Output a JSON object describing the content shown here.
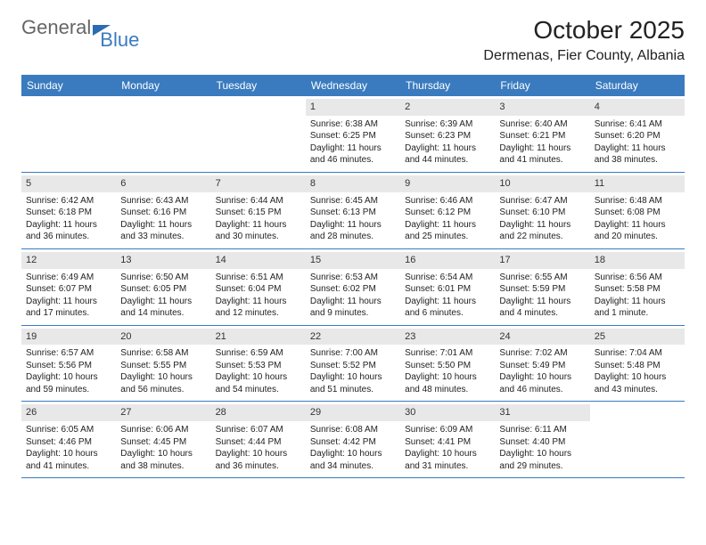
{
  "brand": {
    "part1": "General",
    "part2": "Blue"
  },
  "title": "October 2025",
  "location": "Dermenas, Fier County, Albania",
  "daynames": [
    "Sunday",
    "Monday",
    "Tuesday",
    "Wednesday",
    "Thursday",
    "Friday",
    "Saturday"
  ],
  "colors": {
    "header_bg": "#3a7bbf",
    "header_text": "#ffffff",
    "daynum_bg": "#e8e8e8",
    "divider": "#3a7bbf",
    "text": "#222222",
    "brand_gray": "#666666",
    "brand_blue": "#3a7bbf"
  },
  "typography": {
    "title_fontsize": 28,
    "location_fontsize": 16,
    "header_fontsize": 12,
    "cell_fontsize": 10
  },
  "weeks": [
    [
      {
        "num": "",
        "sunrise": "",
        "sunset": "",
        "daylight": ""
      },
      {
        "num": "",
        "sunrise": "",
        "sunset": "",
        "daylight": ""
      },
      {
        "num": "",
        "sunrise": "",
        "sunset": "",
        "daylight": ""
      },
      {
        "num": "1",
        "sunrise": "Sunrise: 6:38 AM",
        "sunset": "Sunset: 6:25 PM",
        "daylight": "Daylight: 11 hours and 46 minutes."
      },
      {
        "num": "2",
        "sunrise": "Sunrise: 6:39 AM",
        "sunset": "Sunset: 6:23 PM",
        "daylight": "Daylight: 11 hours and 44 minutes."
      },
      {
        "num": "3",
        "sunrise": "Sunrise: 6:40 AM",
        "sunset": "Sunset: 6:21 PM",
        "daylight": "Daylight: 11 hours and 41 minutes."
      },
      {
        "num": "4",
        "sunrise": "Sunrise: 6:41 AM",
        "sunset": "Sunset: 6:20 PM",
        "daylight": "Daylight: 11 hours and 38 minutes."
      }
    ],
    [
      {
        "num": "5",
        "sunrise": "Sunrise: 6:42 AM",
        "sunset": "Sunset: 6:18 PM",
        "daylight": "Daylight: 11 hours and 36 minutes."
      },
      {
        "num": "6",
        "sunrise": "Sunrise: 6:43 AM",
        "sunset": "Sunset: 6:16 PM",
        "daylight": "Daylight: 11 hours and 33 minutes."
      },
      {
        "num": "7",
        "sunrise": "Sunrise: 6:44 AM",
        "sunset": "Sunset: 6:15 PM",
        "daylight": "Daylight: 11 hours and 30 minutes."
      },
      {
        "num": "8",
        "sunrise": "Sunrise: 6:45 AM",
        "sunset": "Sunset: 6:13 PM",
        "daylight": "Daylight: 11 hours and 28 minutes."
      },
      {
        "num": "9",
        "sunrise": "Sunrise: 6:46 AM",
        "sunset": "Sunset: 6:12 PM",
        "daylight": "Daylight: 11 hours and 25 minutes."
      },
      {
        "num": "10",
        "sunrise": "Sunrise: 6:47 AM",
        "sunset": "Sunset: 6:10 PM",
        "daylight": "Daylight: 11 hours and 22 minutes."
      },
      {
        "num": "11",
        "sunrise": "Sunrise: 6:48 AM",
        "sunset": "Sunset: 6:08 PM",
        "daylight": "Daylight: 11 hours and 20 minutes."
      }
    ],
    [
      {
        "num": "12",
        "sunrise": "Sunrise: 6:49 AM",
        "sunset": "Sunset: 6:07 PM",
        "daylight": "Daylight: 11 hours and 17 minutes."
      },
      {
        "num": "13",
        "sunrise": "Sunrise: 6:50 AM",
        "sunset": "Sunset: 6:05 PM",
        "daylight": "Daylight: 11 hours and 14 minutes."
      },
      {
        "num": "14",
        "sunrise": "Sunrise: 6:51 AM",
        "sunset": "Sunset: 6:04 PM",
        "daylight": "Daylight: 11 hours and 12 minutes."
      },
      {
        "num": "15",
        "sunrise": "Sunrise: 6:53 AM",
        "sunset": "Sunset: 6:02 PM",
        "daylight": "Daylight: 11 hours and 9 minutes."
      },
      {
        "num": "16",
        "sunrise": "Sunrise: 6:54 AM",
        "sunset": "Sunset: 6:01 PM",
        "daylight": "Daylight: 11 hours and 6 minutes."
      },
      {
        "num": "17",
        "sunrise": "Sunrise: 6:55 AM",
        "sunset": "Sunset: 5:59 PM",
        "daylight": "Daylight: 11 hours and 4 minutes."
      },
      {
        "num": "18",
        "sunrise": "Sunrise: 6:56 AM",
        "sunset": "Sunset: 5:58 PM",
        "daylight": "Daylight: 11 hours and 1 minute."
      }
    ],
    [
      {
        "num": "19",
        "sunrise": "Sunrise: 6:57 AM",
        "sunset": "Sunset: 5:56 PM",
        "daylight": "Daylight: 10 hours and 59 minutes."
      },
      {
        "num": "20",
        "sunrise": "Sunrise: 6:58 AM",
        "sunset": "Sunset: 5:55 PM",
        "daylight": "Daylight: 10 hours and 56 minutes."
      },
      {
        "num": "21",
        "sunrise": "Sunrise: 6:59 AM",
        "sunset": "Sunset: 5:53 PM",
        "daylight": "Daylight: 10 hours and 54 minutes."
      },
      {
        "num": "22",
        "sunrise": "Sunrise: 7:00 AM",
        "sunset": "Sunset: 5:52 PM",
        "daylight": "Daylight: 10 hours and 51 minutes."
      },
      {
        "num": "23",
        "sunrise": "Sunrise: 7:01 AM",
        "sunset": "Sunset: 5:50 PM",
        "daylight": "Daylight: 10 hours and 48 minutes."
      },
      {
        "num": "24",
        "sunrise": "Sunrise: 7:02 AM",
        "sunset": "Sunset: 5:49 PM",
        "daylight": "Daylight: 10 hours and 46 minutes."
      },
      {
        "num": "25",
        "sunrise": "Sunrise: 7:04 AM",
        "sunset": "Sunset: 5:48 PM",
        "daylight": "Daylight: 10 hours and 43 minutes."
      }
    ],
    [
      {
        "num": "26",
        "sunrise": "Sunrise: 6:05 AM",
        "sunset": "Sunset: 4:46 PM",
        "daylight": "Daylight: 10 hours and 41 minutes."
      },
      {
        "num": "27",
        "sunrise": "Sunrise: 6:06 AM",
        "sunset": "Sunset: 4:45 PM",
        "daylight": "Daylight: 10 hours and 38 minutes."
      },
      {
        "num": "28",
        "sunrise": "Sunrise: 6:07 AM",
        "sunset": "Sunset: 4:44 PM",
        "daylight": "Daylight: 10 hours and 36 minutes."
      },
      {
        "num": "29",
        "sunrise": "Sunrise: 6:08 AM",
        "sunset": "Sunset: 4:42 PM",
        "daylight": "Daylight: 10 hours and 34 minutes."
      },
      {
        "num": "30",
        "sunrise": "Sunrise: 6:09 AM",
        "sunset": "Sunset: 4:41 PM",
        "daylight": "Daylight: 10 hours and 31 minutes."
      },
      {
        "num": "31",
        "sunrise": "Sunrise: 6:11 AM",
        "sunset": "Sunset: 4:40 PM",
        "daylight": "Daylight: 10 hours and 29 minutes."
      },
      {
        "num": "",
        "sunrise": "",
        "sunset": "",
        "daylight": ""
      }
    ]
  ]
}
